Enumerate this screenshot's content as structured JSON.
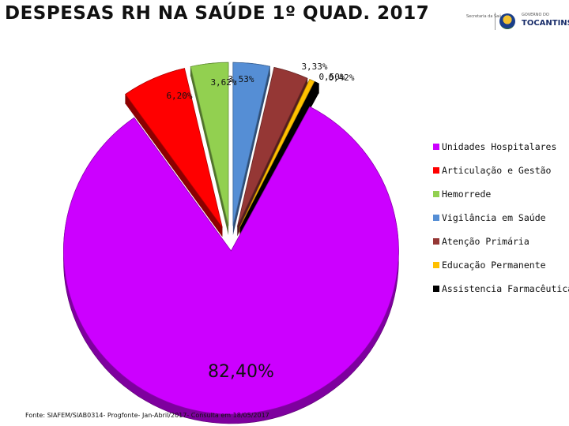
{
  "header": {
    "title": "DESPESAS RH NA SAÚDE 1º QUAD. 2017",
    "logo_secretaria": "Secretaria da Saúde",
    "logo_estado": "GOVERNO DO",
    "logo_brand": "TOCANTINS"
  },
  "chart_data": {
    "type": "pie",
    "title": "DESPESAS RH NA SAÚDE 1º QUAD. 2017",
    "slices": [
      {
        "name": "Unidades Hospitalares",
        "value": 82.4,
        "label": "82,40%",
        "color": "#cc00ff"
      },
      {
        "name": "Articulação e Gestão",
        "value": 6.2,
        "label": "6,20%",
        "color": "#ff0000"
      },
      {
        "name": "Hemorrede",
        "value": 3.62,
        "label": "3,62%",
        "color": "#92d050"
      },
      {
        "name": "Vigilância em Saúde",
        "value": 3.53,
        "label": "3,53%",
        "color": "#558ed5"
      },
      {
        "name": "Atenção Primária",
        "value": 3.33,
        "label": "3,33%",
        "color": "#953735"
      },
      {
        "name": "Educação Permanente",
        "value": 0.5,
        "label": "0,50%",
        "color": "#ffc000"
      },
      {
        "name": "Assistencia Farmacêutica",
        "value": 0.42,
        "label": "0,42%",
        "color": "#000000"
      }
    ],
    "legend_position": "right",
    "exploded": true,
    "style": "3d"
  },
  "footer": {
    "source": "Fonte: SIAFEM/SIAB0314- Progfonte- Jan-Abril/2017- Consulta em 18/05/2017"
  }
}
